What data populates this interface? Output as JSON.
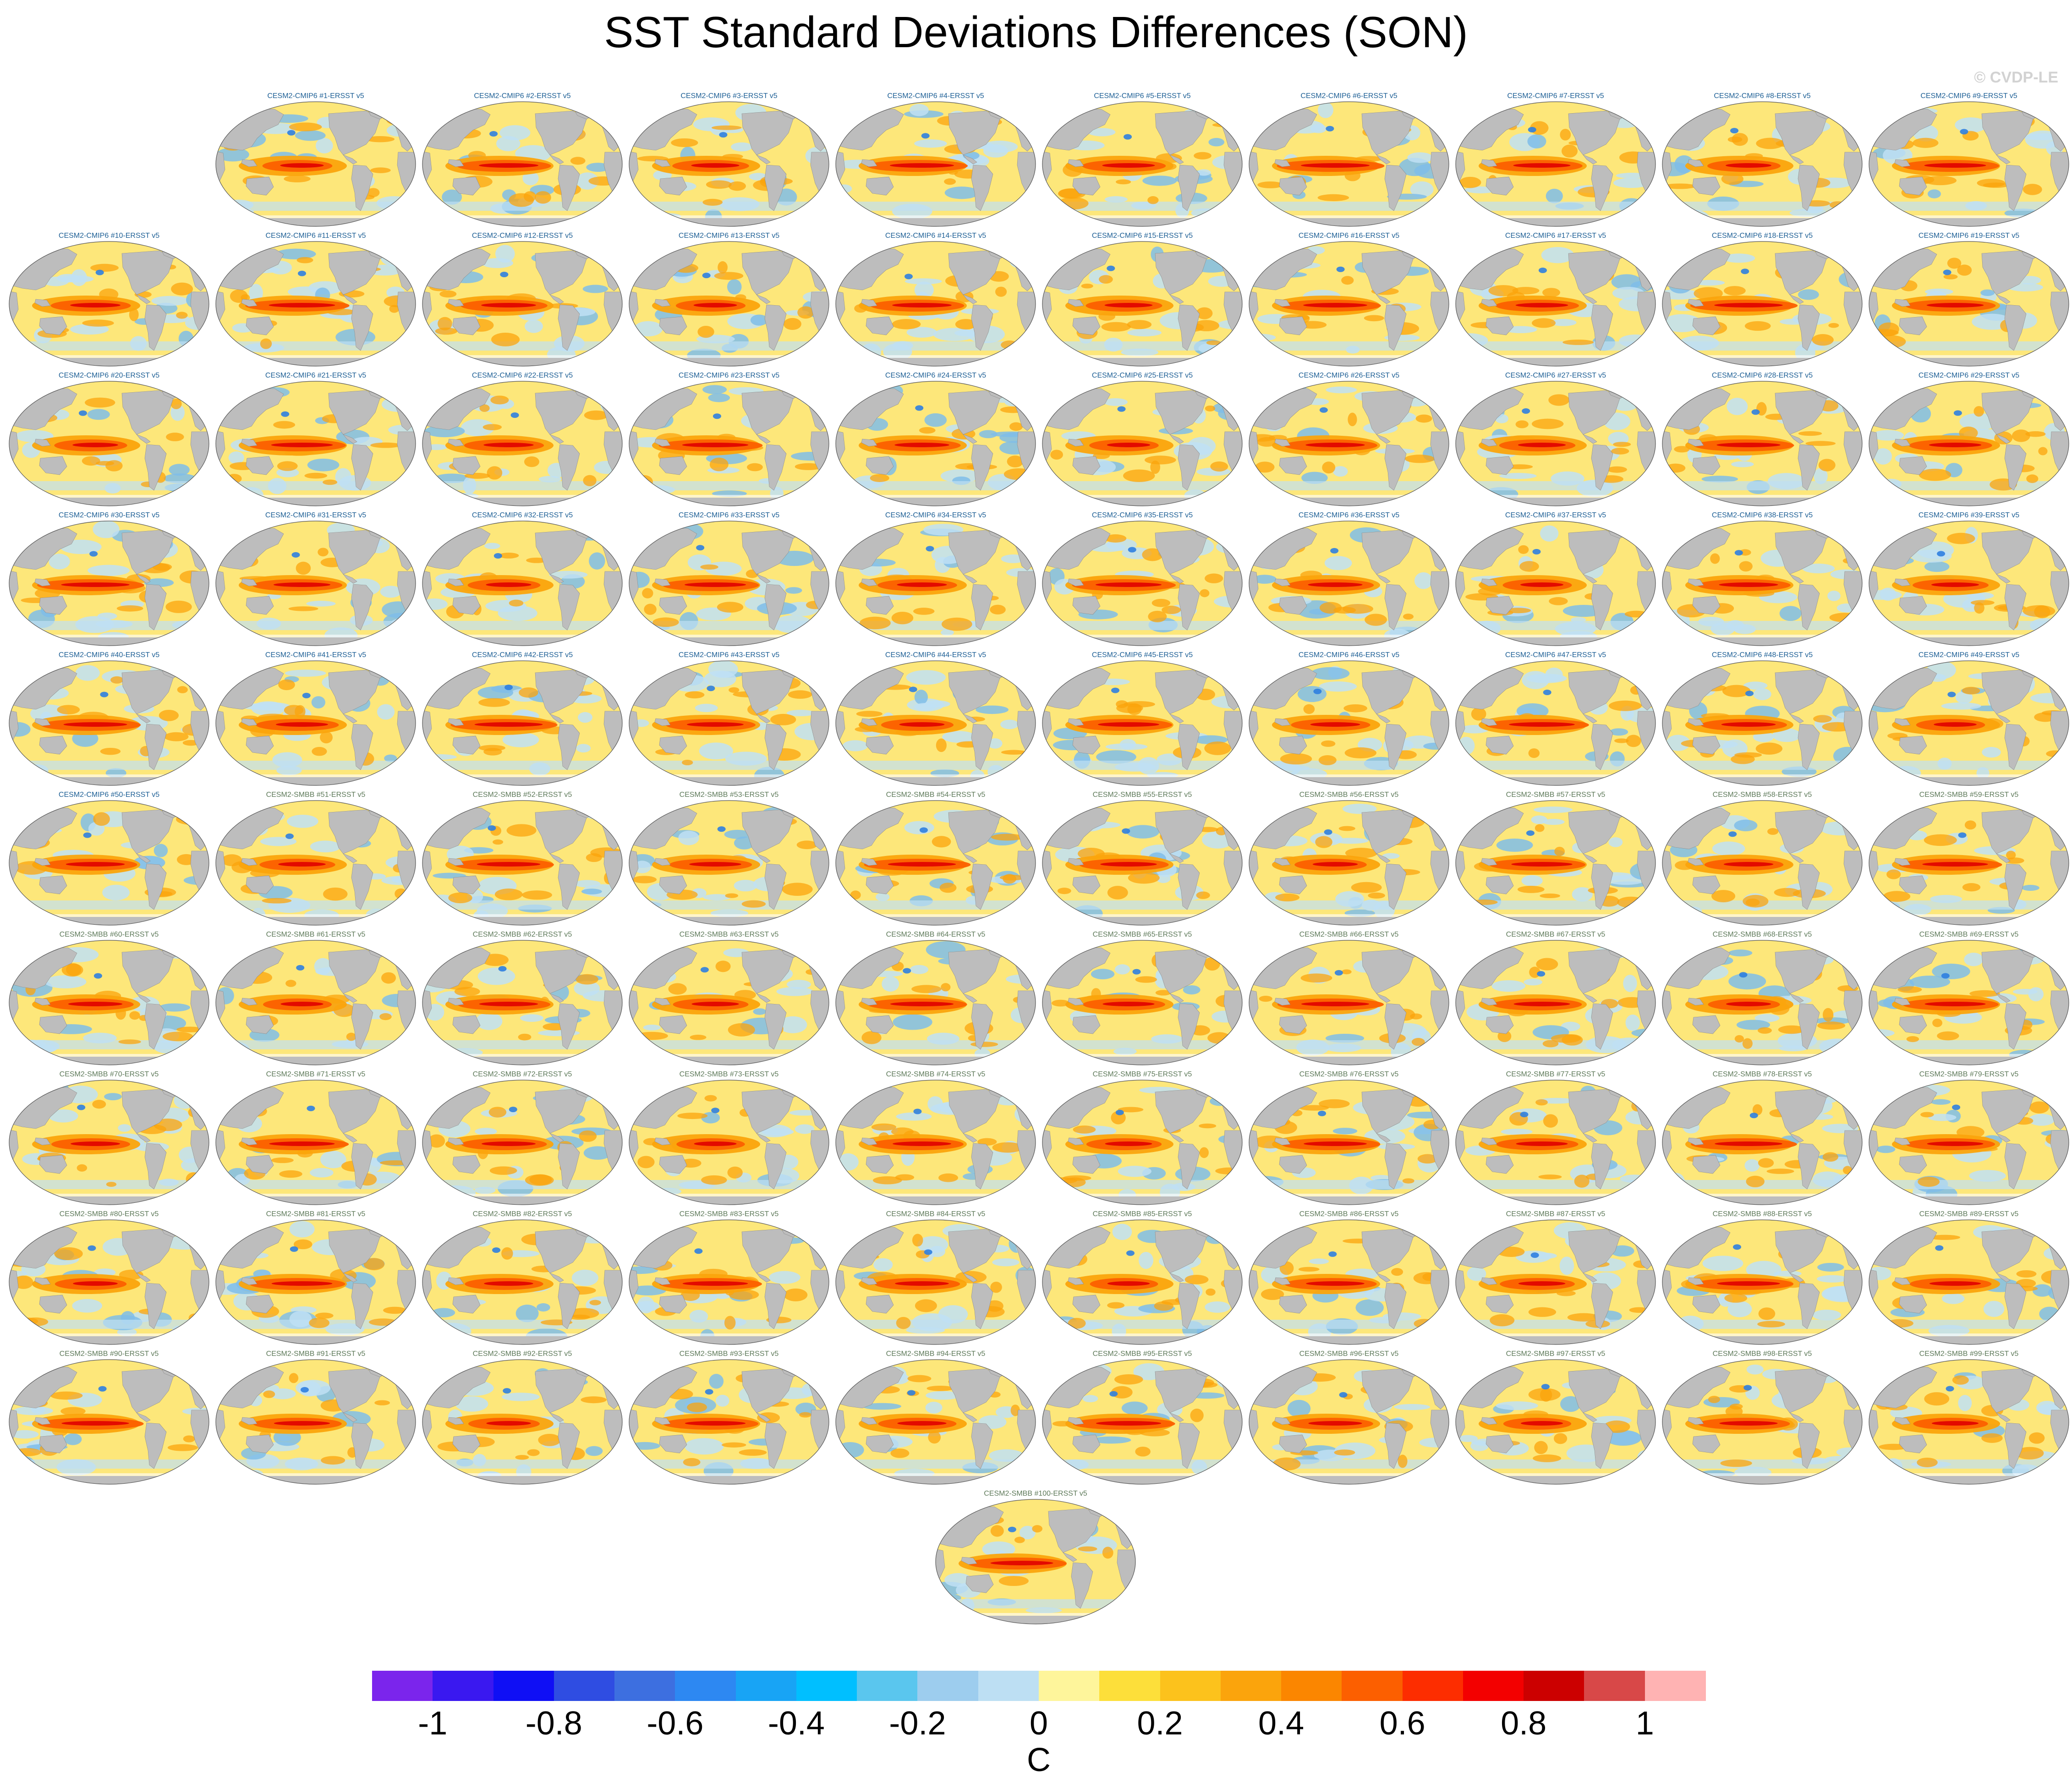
{
  "title": "SST Standard Deviations Differences (SON)",
  "watermark": "© CVDP-LE",
  "panels": [
    {
      "label": "CESM2-CMIP6 #1-ERSST v5",
      "group": "cmip6"
    },
    {
      "label": "CESM2-CMIP6 #2-ERSST v5",
      "group": "cmip6"
    },
    {
      "label": "CESM2-CMIP6 #3-ERSST v5",
      "group": "cmip6"
    },
    {
      "label": "CESM2-CMIP6 #4-ERSST v5",
      "group": "cmip6"
    },
    {
      "label": "CESM2-CMIP6 #5-ERSST v5",
      "group": "cmip6"
    },
    {
      "label": "CESM2-CMIP6 #6-ERSST v5",
      "group": "cmip6"
    },
    {
      "label": "CESM2-CMIP6 #7-ERSST v5",
      "group": "cmip6"
    },
    {
      "label": "CESM2-CMIP6 #8-ERSST v5",
      "group": "cmip6"
    },
    {
      "label": "CESM2-CMIP6 #9-ERSST v5",
      "group": "cmip6"
    },
    {
      "label": "CESM2-CMIP6 #10-ERSST v5",
      "group": "cmip6"
    },
    {
      "label": "CESM2-CMIP6 #11-ERSST v5",
      "group": "cmip6"
    },
    {
      "label": "CESM2-CMIP6 #12-ERSST v5",
      "group": "cmip6"
    },
    {
      "label": "CESM2-CMIP6 #13-ERSST v5",
      "group": "cmip6"
    },
    {
      "label": "CESM2-CMIP6 #14-ERSST v5",
      "group": "cmip6"
    },
    {
      "label": "CESM2-CMIP6 #15-ERSST v5",
      "group": "cmip6"
    },
    {
      "label": "CESM2-CMIP6 #16-ERSST v5",
      "group": "cmip6"
    },
    {
      "label": "CESM2-CMIP6 #17-ERSST v5",
      "group": "cmip6"
    },
    {
      "label": "CESM2-CMIP6 #18-ERSST v5",
      "group": "cmip6"
    },
    {
      "label": "CESM2-CMIP6 #19-ERSST v5",
      "group": "cmip6"
    },
    {
      "label": "CESM2-CMIP6 #20-ERSST v5",
      "group": "cmip6"
    },
    {
      "label": "CESM2-CMIP6 #21-ERSST v5",
      "group": "cmip6"
    },
    {
      "label": "CESM2-CMIP6 #22-ERSST v5",
      "group": "cmip6"
    },
    {
      "label": "CESM2-CMIP6 #23-ERSST v5",
      "group": "cmip6"
    },
    {
      "label": "CESM2-CMIP6 #24-ERSST v5",
      "group": "cmip6"
    },
    {
      "label": "CESM2-CMIP6 #25-ERSST v5",
      "group": "cmip6"
    },
    {
      "label": "CESM2-CMIP6 #26-ERSST v5",
      "group": "cmip6"
    },
    {
      "label": "CESM2-CMIP6 #27-ERSST v5",
      "group": "cmip6"
    },
    {
      "label": "CESM2-CMIP6 #28-ERSST v5",
      "group": "cmip6"
    },
    {
      "label": "CESM2-CMIP6 #29-ERSST v5",
      "group": "cmip6"
    },
    {
      "label": "CESM2-CMIP6 #30-ERSST v5",
      "group": "cmip6"
    },
    {
      "label": "CESM2-CMIP6 #31-ERSST v5",
      "group": "cmip6"
    },
    {
      "label": "CESM2-CMIP6 #32-ERSST v5",
      "group": "cmip6"
    },
    {
      "label": "CESM2-CMIP6 #33-ERSST v5",
      "group": "cmip6"
    },
    {
      "label": "CESM2-CMIP6 #34-ERSST v5",
      "group": "cmip6"
    },
    {
      "label": "CESM2-CMIP6 #35-ERSST v5",
      "group": "cmip6"
    },
    {
      "label": "CESM2-CMIP6 #36-ERSST v5",
      "group": "cmip6"
    },
    {
      "label": "CESM2-CMIP6 #37-ERSST v5",
      "group": "cmip6"
    },
    {
      "label": "CESM2-CMIP6 #38-ERSST v5",
      "group": "cmip6"
    },
    {
      "label": "CESM2-CMIP6 #39-ERSST v5",
      "group": "cmip6"
    },
    {
      "label": "CESM2-CMIP6 #40-ERSST v5",
      "group": "cmip6"
    },
    {
      "label": "CESM2-CMIP6 #41-ERSST v5",
      "group": "cmip6"
    },
    {
      "label": "CESM2-CMIP6 #42-ERSST v5",
      "group": "cmip6"
    },
    {
      "label": "CESM2-CMIP6 #43-ERSST v5",
      "group": "cmip6"
    },
    {
      "label": "CESM2-CMIP6 #44-ERSST v5",
      "group": "cmip6"
    },
    {
      "label": "CESM2-CMIP6 #45-ERSST v5",
      "group": "cmip6"
    },
    {
      "label": "CESM2-CMIP6 #46-ERSST v5",
      "group": "cmip6"
    },
    {
      "label": "CESM2-CMIP6 #47-ERSST v5",
      "group": "cmip6"
    },
    {
      "label": "CESM2-CMIP6 #48-ERSST v5",
      "group": "cmip6"
    },
    {
      "label": "CESM2-CMIP6 #49-ERSST v5",
      "group": "cmip6"
    },
    {
      "label": "CESM2-CMIP6 #50-ERSST v5",
      "group": "cmip6"
    },
    {
      "label": "CESM2-SMBB #51-ERSST v5",
      "group": "smbb"
    },
    {
      "label": "CESM2-SMBB #52-ERSST v5",
      "group": "smbb"
    },
    {
      "label": "CESM2-SMBB #53-ERSST v5",
      "group": "smbb"
    },
    {
      "label": "CESM2-SMBB #54-ERSST v5",
      "group": "smbb"
    },
    {
      "label": "CESM2-SMBB #55-ERSST v5",
      "group": "smbb"
    },
    {
      "label": "CESM2-SMBB #56-ERSST v5",
      "group": "smbb"
    },
    {
      "label": "CESM2-SMBB #57-ERSST v5",
      "group": "smbb"
    },
    {
      "label": "CESM2-SMBB #58-ERSST v5",
      "group": "smbb"
    },
    {
      "label": "CESM2-SMBB #59-ERSST v5",
      "group": "smbb"
    },
    {
      "label": "CESM2-SMBB #60-ERSST v5",
      "group": "smbb"
    },
    {
      "label": "CESM2-SMBB #61-ERSST v5",
      "group": "smbb"
    },
    {
      "label": "CESM2-SMBB #62-ERSST v5",
      "group": "smbb"
    },
    {
      "label": "CESM2-SMBB #63-ERSST v5",
      "group": "smbb"
    },
    {
      "label": "CESM2-SMBB #64-ERSST v5",
      "group": "smbb"
    },
    {
      "label": "CESM2-SMBB #65-ERSST v5",
      "group": "smbb"
    },
    {
      "label": "CESM2-SMBB #66-ERSST v5",
      "group": "smbb"
    },
    {
      "label": "CESM2-SMBB #67-ERSST v5",
      "group": "smbb"
    },
    {
      "label": "CESM2-SMBB #68-ERSST v5",
      "group": "smbb"
    },
    {
      "label": "CESM2-SMBB #69-ERSST v5",
      "group": "smbb"
    },
    {
      "label": "CESM2-SMBB #70-ERSST v5",
      "group": "smbb"
    },
    {
      "label": "CESM2-SMBB #71-ERSST v5",
      "group": "smbb"
    },
    {
      "label": "CESM2-SMBB #72-ERSST v5",
      "group": "smbb"
    },
    {
      "label": "CESM2-SMBB #73-ERSST v5",
      "group": "smbb"
    },
    {
      "label": "CESM2-SMBB #74-ERSST v5",
      "group": "smbb"
    },
    {
      "label": "CESM2-SMBB #75-ERSST v5",
      "group": "smbb"
    },
    {
      "label": "CESM2-SMBB #76-ERSST v5",
      "group": "smbb"
    },
    {
      "label": "CESM2-SMBB #77-ERSST v5",
      "group": "smbb"
    },
    {
      "label": "CESM2-SMBB #78-ERSST v5",
      "group": "smbb"
    },
    {
      "label": "CESM2-SMBB #79-ERSST v5",
      "group": "smbb"
    },
    {
      "label": "CESM2-SMBB #80-ERSST v5",
      "group": "smbb"
    },
    {
      "label": "CESM2-SMBB #81-ERSST v5",
      "group": "smbb"
    },
    {
      "label": "CESM2-SMBB #82-ERSST v5",
      "group": "smbb"
    },
    {
      "label": "CESM2-SMBB #83-ERSST v5",
      "group": "smbb"
    },
    {
      "label": "CESM2-SMBB #84-ERSST v5",
      "group": "smbb"
    },
    {
      "label": "CESM2-SMBB #85-ERSST v5",
      "group": "smbb"
    },
    {
      "label": "CESM2-SMBB #86-ERSST v5",
      "group": "smbb"
    },
    {
      "label": "CESM2-SMBB #87-ERSST v5",
      "group": "smbb"
    },
    {
      "label": "CESM2-SMBB #88-ERSST v5",
      "group": "smbb"
    },
    {
      "label": "CESM2-SMBB #89-ERSST v5",
      "group": "smbb"
    },
    {
      "label": "CESM2-SMBB #90-ERSST v5",
      "group": "smbb"
    },
    {
      "label": "CESM2-SMBB #91-ERSST v5",
      "group": "smbb"
    },
    {
      "label": "CESM2-SMBB #92-ERSST v5",
      "group": "smbb"
    },
    {
      "label": "CESM2-SMBB #93-ERSST v5",
      "group": "smbb"
    },
    {
      "label": "CESM2-SMBB #94-ERSST v5",
      "group": "smbb"
    },
    {
      "label": "CESM2-SMBB #95-ERSST v5",
      "group": "smbb"
    },
    {
      "label": "CESM2-SMBB #96-ERSST v5",
      "group": "smbb"
    },
    {
      "label": "CESM2-SMBB #97-ERSST v5",
      "group": "smbb"
    },
    {
      "label": "CESM2-SMBB #98-ERSST v5",
      "group": "smbb"
    },
    {
      "label": "CESM2-SMBB #99-ERSST v5",
      "group": "smbb"
    },
    {
      "label": "CESM2-SMBB #100-ERSST v5",
      "group": "smbb"
    }
  ],
  "colorbar": {
    "units": "C",
    "ticks": [
      "-1",
      "-0.8",
      "-0.6",
      "-0.4",
      "-0.2",
      "0",
      "0.2",
      "0.4",
      "0.6",
      "0.8",
      "1"
    ],
    "colors": [
      "#7b25ec",
      "#3a18f0",
      "#0f0ff5",
      "#2f4de2",
      "#3d6fe0",
      "#2d88f2",
      "#18a4f5",
      "#00bfff",
      "#5ac6ee",
      "#9dcdee",
      "#bddff3",
      "#fef59b",
      "#fddf3a",
      "#fcc21c",
      "#fba40c",
      "#fb8600",
      "#fc5f00",
      "#fd2d00",
      "#f30000",
      "#cc0000",
      "#d84848",
      "#ffb3b3"
    ]
  },
  "map_colors": {
    "land": "#bdbdbd",
    "ocean_base": "#fde77a",
    "cool": "#bfe0f4",
    "cool_strong": "#7fbde9",
    "blue_spot": "#2f7fe0",
    "warm": "#fba40c",
    "hot": "#fc5f00",
    "tongue": "#e00000"
  }
}
